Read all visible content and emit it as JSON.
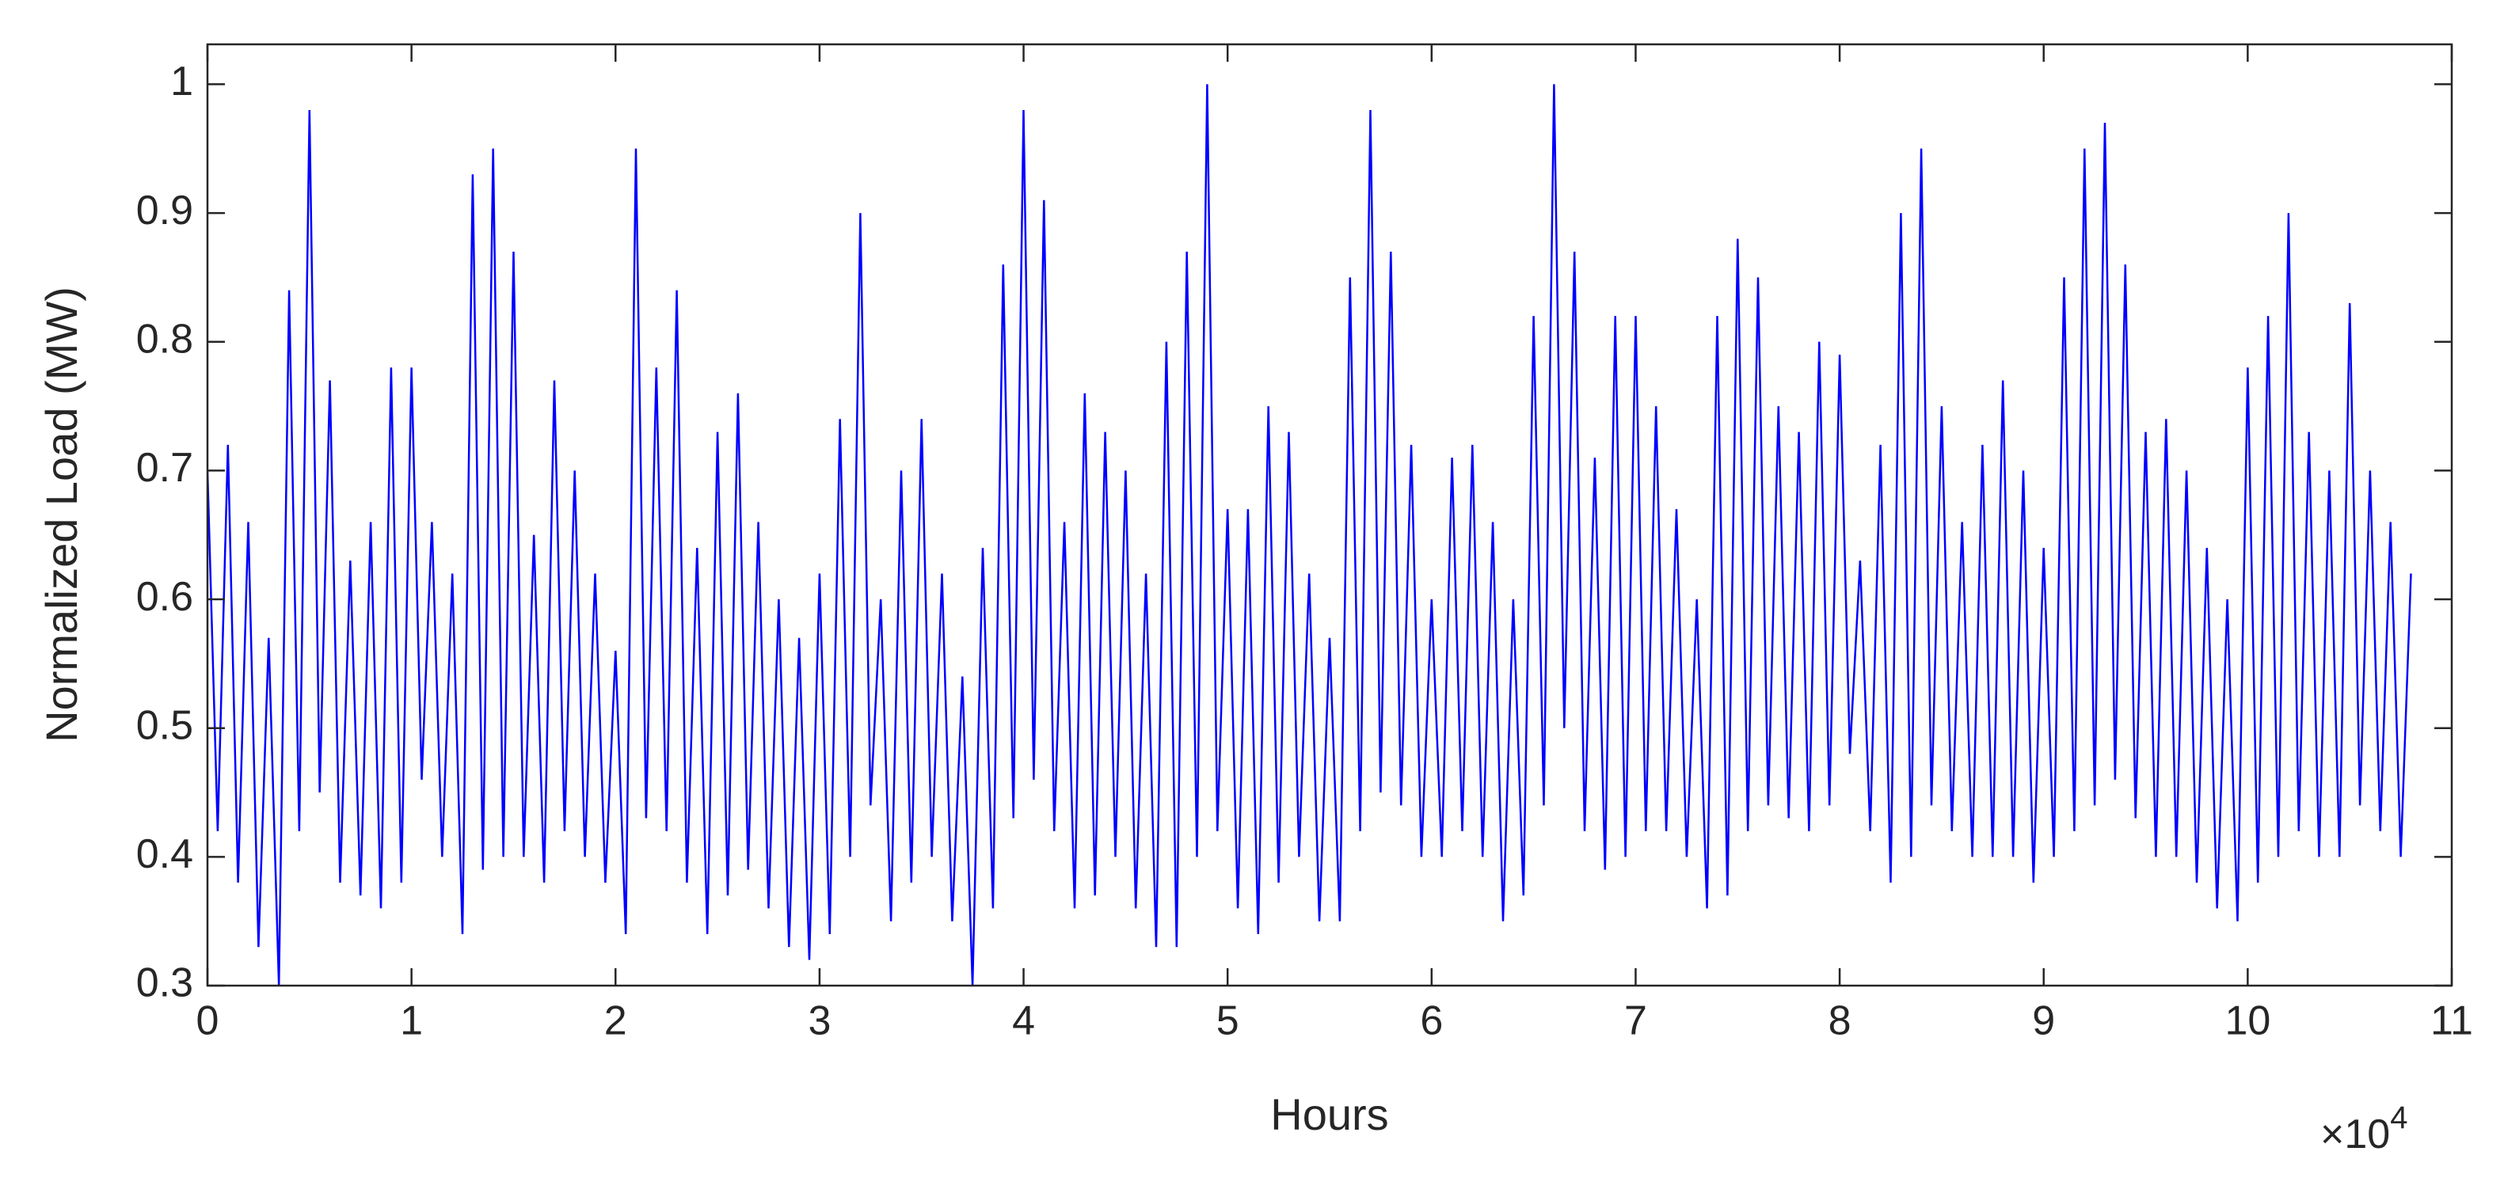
{
  "chart_data": {
    "type": "line",
    "x_label": "Hours",
    "y_label": "Normalized Load (MW)",
    "x_multiplier": "×10",
    "x_multiplier_exponent": "4",
    "color": "#0000ff",
    "xlim": [
      0,
      110000
    ],
    "ylim": [
      0.3,
      1.031
    ],
    "xticks": [
      {
        "value": 0,
        "label": "0"
      },
      {
        "value": 10000,
        "label": "1"
      },
      {
        "value": 20000,
        "label": "2"
      },
      {
        "value": 30000,
        "label": "3"
      },
      {
        "value": 40000,
        "label": "4"
      },
      {
        "value": 50000,
        "label": "5"
      },
      {
        "value": 60000,
        "label": "6"
      },
      {
        "value": 70000,
        "label": "7"
      },
      {
        "value": 80000,
        "label": "8"
      },
      {
        "value": 90000,
        "label": "9"
      },
      {
        "value": 100000,
        "label": "10"
      },
      {
        "value": 110000,
        "label": "11"
      }
    ],
    "yticks": [
      0.3,
      0.4,
      0.5,
      0.6,
      0.7,
      0.8,
      0.9,
      1
    ],
    "x": [
      0,
      500,
      1000,
      1500,
      2000,
      2500,
      3000,
      3500,
      4000,
      4500,
      5000,
      5500,
      6000,
      6500,
      7000,
      7500,
      8000,
      8500,
      9000,
      9500,
      10000,
      10500,
      11000,
      11500,
      12000,
      12500,
      13000,
      13500,
      14000,
      14500,
      15000,
      15500,
      16000,
      16500,
      17000,
      17500,
      18000,
      18500,
      19000,
      19500,
      20000,
      20500,
      21000,
      21500,
      22000,
      22500,
      23000,
      23500,
      24000,
      24500,
      25000,
      25500,
      26000,
      26500,
      27000,
      27500,
      28000,
      28500,
      29000,
      29500,
      30000,
      30500,
      31000,
      31500,
      32000,
      32500,
      33000,
      33500,
      34000,
      34500,
      35000,
      35500,
      36000,
      36500,
      37000,
      37500,
      38000,
      38500,
      39000,
      39500,
      40000,
      40500,
      41000,
      41500,
      42000,
      42500,
      43000,
      43500,
      44000,
      44500,
      45000,
      45500,
      46000,
      46500,
      47000,
      47500,
      48000,
      48500,
      49000,
      49500,
      50000,
      50500,
      51000,
      51500,
      52000,
      52500,
      53000,
      53500,
      54000,
      54500,
      55000,
      55500,
      56000,
      56500,
      57000,
      57500,
      58000,
      58500,
      59000,
      59500,
      60000,
      60500,
      61000,
      61500,
      62000,
      62500,
      63000,
      63500,
      64000,
      64500,
      65000,
      65500,
      66000,
      66500,
      67000,
      67500,
      68000,
      68500,
      69000,
      69500,
      70000,
      70500,
      71000,
      71500,
      72000,
      72500,
      73000,
      73500,
      74000,
      74500,
      75000,
      75500,
      76000,
      76500,
      77000,
      77500,
      78000,
      78500,
      79000,
      79500,
      80000,
      80500,
      81000,
      81500,
      82000,
      82500,
      83000,
      83500,
      84000,
      84500,
      85000,
      85500,
      86000,
      86500,
      87000,
      87500,
      88000,
      88500,
      89000,
      89500,
      90000,
      90500,
      91000,
      91500,
      92000,
      92500,
      93000,
      93500,
      94000,
      94500,
      95000,
      95500,
      96000,
      96500,
      97000,
      97500,
      98000,
      98500,
      99000,
      99500,
      100000,
      100500,
      101000,
      101500,
      102000,
      102500,
      103000,
      103500,
      104000,
      104500,
      105000,
      105500,
      106000,
      106500,
      107000,
      107500,
      108000
    ],
    "values": [
      0.7,
      0.42,
      0.72,
      0.38,
      0.66,
      0.33,
      0.57,
      0.3,
      0.84,
      0.42,
      0.98,
      0.45,
      0.77,
      0.38,
      0.63,
      0.37,
      0.66,
      0.36,
      0.78,
      0.38,
      0.78,
      0.46,
      0.66,
      0.4,
      0.62,
      0.34,
      0.93,
      0.39,
      0.95,
      0.4,
      0.87,
      0.4,
      0.65,
      0.38,
      0.77,
      0.42,
      0.7,
      0.4,
      0.62,
      0.38,
      0.56,
      0.34,
      0.95,
      0.43,
      0.78,
      0.42,
      0.84,
      0.38,
      0.64,
      0.34,
      0.73,
      0.37,
      0.76,
      0.39,
      0.66,
      0.36,
      0.6,
      0.33,
      0.57,
      0.32,
      0.62,
      0.34,
      0.74,
      0.4,
      0.9,
      0.44,
      0.6,
      0.35,
      0.7,
      0.38,
      0.74,
      0.4,
      0.62,
      0.35,
      0.54,
      0.3,
      0.64,
      0.36,
      0.86,
      0.43,
      0.98,
      0.46,
      0.91,
      0.42,
      0.66,
      0.36,
      0.76,
      0.37,
      0.73,
      0.4,
      0.7,
      0.36,
      0.62,
      0.33,
      0.8,
      0.33,
      0.87,
      0.4,
      1.0,
      0.42,
      0.67,
      0.36,
      0.67,
      0.34,
      0.75,
      0.38,
      0.73,
      0.4,
      0.62,
      0.35,
      0.57,
      0.35,
      0.85,
      0.42,
      0.98,
      0.45,
      0.87,
      0.44,
      0.72,
      0.4,
      0.6,
      0.4,
      0.71,
      0.42,
      0.72,
      0.4,
      0.66,
      0.35,
      0.6,
      0.37,
      0.82,
      0.44,
      1.0,
      0.5,
      0.87,
      0.42,
      0.71,
      0.39,
      0.82,
      0.4,
      0.82,
      0.42,
      0.75,
      0.42,
      0.67,
      0.4,
      0.6,
      0.36,
      0.82,
      0.37,
      0.88,
      0.42,
      0.85,
      0.44,
      0.75,
      0.43,
      0.73,
      0.42,
      0.8,
      0.44,
      0.79,
      0.48,
      0.63,
      0.42,
      0.72,
      0.38,
      0.9,
      0.4,
      0.95,
      0.44,
      0.75,
      0.42,
      0.66,
      0.4,
      0.72,
      0.4,
      0.77,
      0.4,
      0.7,
      0.38,
      0.64,
      0.4,
      0.85,
      0.42,
      0.95,
      0.44,
      0.97,
      0.46,
      0.86,
      0.43,
      0.73,
      0.4,
      0.74,
      0.4,
      0.7,
      0.38,
      0.64,
      0.36,
      0.6,
      0.35,
      0.78,
      0.38,
      0.82,
      0.4,
      0.9,
      0.42,
      0.73,
      0.4,
      0.7,
      0.4,
      0.83,
      0.44,
      0.7,
      0.42,
      0.66,
      0.4,
      0.62
    ]
  }
}
